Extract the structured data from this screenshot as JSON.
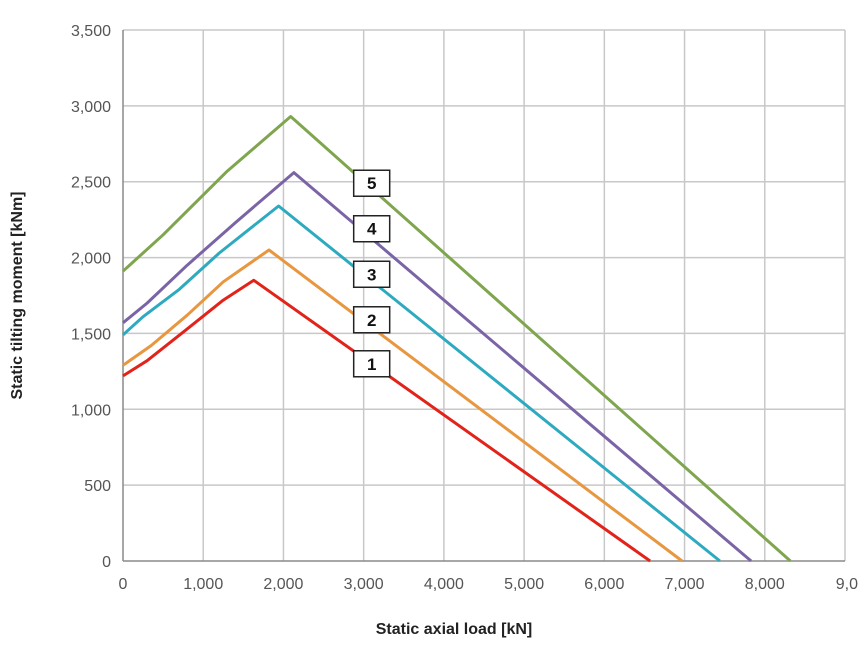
{
  "chart_data": {
    "type": "line",
    "title": "",
    "xlabel": "Static axial load [kN]",
    "ylabel": "Static tilting moment [kNm]",
    "xlim": [
      0,
      9000
    ],
    "ylim": [
      0,
      3500
    ],
    "x_ticks": [
      "0",
      "1,000",
      "2,000",
      "3,000",
      "4,000",
      "5,000",
      "6,000",
      "7,000",
      "8,000",
      "9,0"
    ],
    "y_ticks": [
      "0",
      "500",
      "1,000",
      "1,500",
      "2,000",
      "2,500",
      "3,000",
      "3,500"
    ],
    "grid": true,
    "series": [
      {
        "name": "1",
        "color": "#e2231a",
        "points": [
          [
            0,
            1220
          ],
          [
            300,
            1320
          ],
          [
            800,
            1530
          ],
          [
            1250,
            1720
          ],
          [
            1630,
            1850
          ],
          [
            6570,
            0
          ]
        ]
      },
      {
        "name": "2",
        "color": "#e8963f",
        "points": [
          [
            0,
            1290
          ],
          [
            350,
            1420
          ],
          [
            800,
            1620
          ],
          [
            1250,
            1840
          ],
          [
            1820,
            2050
          ],
          [
            6970,
            0
          ]
        ]
      },
      {
        "name": "3",
        "color": "#2eaac0",
        "points": [
          [
            0,
            1490
          ],
          [
            250,
            1610
          ],
          [
            700,
            1790
          ],
          [
            1200,
            2030
          ],
          [
            1940,
            2340
          ],
          [
            7440,
            0
          ]
        ]
      },
      {
        "name": "4",
        "color": "#7b64a6",
        "points": [
          [
            0,
            1570
          ],
          [
            300,
            1700
          ],
          [
            800,
            1950
          ],
          [
            1400,
            2230
          ],
          [
            2130,
            2560
          ],
          [
            7830,
            0
          ]
        ]
      },
      {
        "name": "5",
        "color": "#7fa64f",
        "points": [
          [
            0,
            1910
          ],
          [
            500,
            2150
          ],
          [
            1300,
            2570
          ],
          [
            2090,
            2930
          ],
          [
            8320,
            0
          ]
        ]
      }
    ],
    "annotations": [
      {
        "text": "1",
        "x": 3100,
        "y": 1300
      },
      {
        "text": "2",
        "x": 3100,
        "y": 1590
      },
      {
        "text": "3",
        "x": 3100,
        "y": 1890
      },
      {
        "text": "4",
        "x": 3100,
        "y": 2190
      },
      {
        "text": "5",
        "x": 3100,
        "y": 2490
      }
    ]
  }
}
